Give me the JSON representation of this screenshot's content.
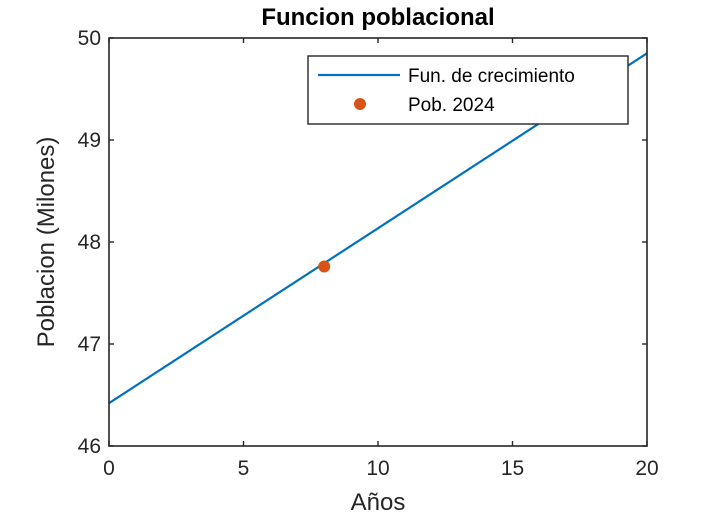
{
  "chart_data": {
    "type": "line",
    "title": "Funcion poblacional",
    "xlabel": "Años",
    "ylabel": "Poblacion (Milones)",
    "xlim": [
      0,
      20
    ],
    "ylim": [
      46,
      50
    ],
    "xticks": [
      "0",
      "5",
      "10",
      "15",
      "20"
    ],
    "yticks": [
      "46",
      "47",
      "48",
      "49",
      "50"
    ],
    "grid": false,
    "legend_position": "top-right",
    "series": [
      {
        "name": "Fun. de crecimiento",
        "kind": "line",
        "color": "#0072BD",
        "x": [
          0,
          20
        ],
        "y": [
          46.42,
          49.85
        ]
      },
      {
        "name": "Pob. 2024",
        "kind": "scatter",
        "color": "#D95319",
        "x": [
          8
        ],
        "y": [
          47.76
        ]
      }
    ]
  }
}
